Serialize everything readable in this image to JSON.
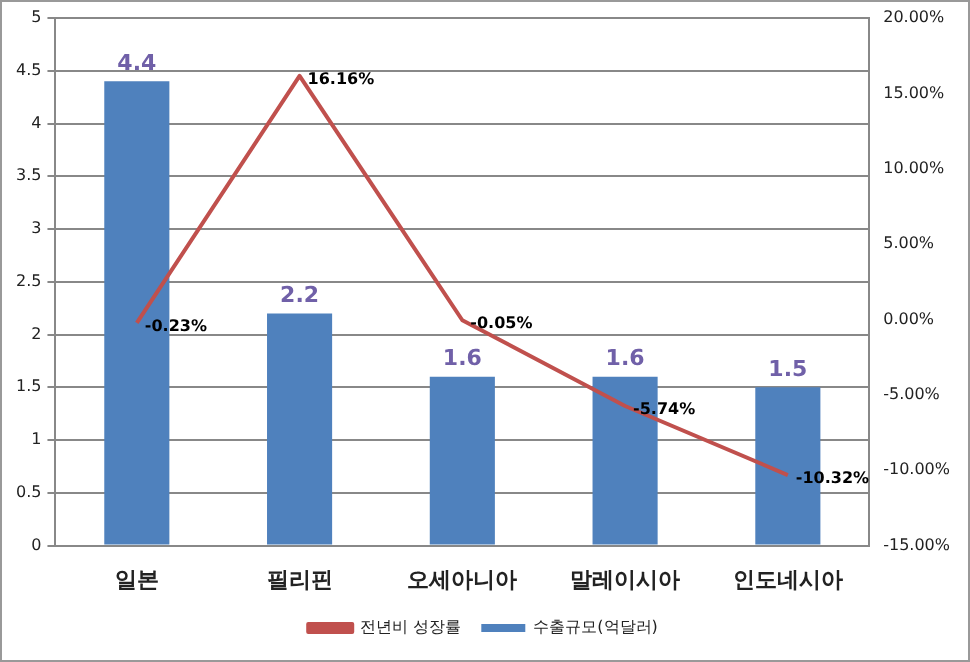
{
  "chart_data": {
    "type": "bar",
    "categories": [
      "일본",
      "필리핀",
      "오세아니아",
      "말레이시아",
      "인도네시아"
    ],
    "series": [
      {
        "name": "수출규모(억달러)",
        "color": "#4f81bd",
        "values": [
          4.4,
          2.2,
          1.6,
          1.6,
          1.5
        ],
        "value_labels": [
          "4.4",
          "2.2",
          "1.6",
          "1.6",
          "1.5"
        ]
      },
      {
        "name": "전년비 성장률",
        "type": "line",
        "axis": "y2",
        "color": "#c0504d",
        "values": [
          -0.23,
          16.16,
          -0.05,
          -5.74,
          -10.32
        ],
        "value_labels": [
          "-0.23%",
          "16.16%",
          "-0.05%",
          "-5.74%",
          "-10.32%"
        ]
      }
    ],
    "ylim": [
      0,
      5
    ],
    "yticks": [
      0,
      0.5,
      1,
      1.5,
      2,
      2.5,
      3,
      3.5,
      4,
      4.5,
      5
    ],
    "y2lim": [
      -15,
      20
    ],
    "y2ticks": [
      {
        "value": -15,
        "label": "-15.00%"
      },
      {
        "value": -10,
        "label": "-10.00%"
      },
      {
        "value": -5,
        "label": "-5.00%"
      },
      {
        "value": 0,
        "label": "0.00%"
      },
      {
        "value": 5,
        "label": "5.00%"
      },
      {
        "value": 10,
        "label": "10.00%"
      },
      {
        "value": 15,
        "label": "15.00%"
      },
      {
        "value": 20,
        "label": "20.00%"
      }
    ],
    "grid": "y",
    "legend": "bottom",
    "marker": "none"
  }
}
